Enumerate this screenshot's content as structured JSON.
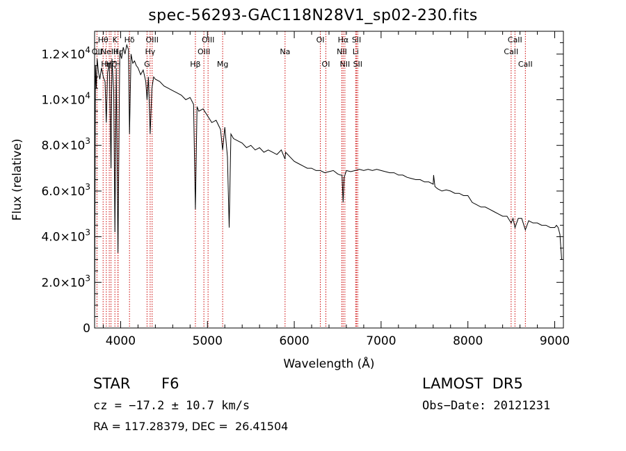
{
  "title": "spec-56293-GAC118N28V1_sp02-230.fits",
  "info": {
    "class": "STAR",
    "subclass": "F6",
    "survey": "LAMOST  DR5",
    "cz": "cz = −17.2 ± 10.7 km/s",
    "obs_date": "Obs−Date: 20121231",
    "coords": "RA = 117.28379, DEC =  26.41504"
  },
  "chart_data": {
    "type": "line",
    "title": "spec-56293-GAC118N28V1_sp02-230.fits",
    "xlabel": "Wavelength (Å)",
    "ylabel": "Flux (relative)",
    "xlim": [
      3700,
      9100
    ],
    "ylim": [
      0,
      13000
    ],
    "xticks": [
      {
        "value": 4000,
        "label": "4000"
      },
      {
        "value": 5000,
        "label": "5000"
      },
      {
        "value": 6000,
        "label": "6000"
      },
      {
        "value": 7000,
        "label": "7000"
      },
      {
        "value": 8000,
        "label": "8000"
      },
      {
        "value": 9000,
        "label": "9000"
      }
    ],
    "yticks": [
      {
        "value": 0,
        "mant": "0",
        "exp": ""
      },
      {
        "value": 2000,
        "mant": "2.0×10",
        "exp": "3"
      },
      {
        "value": 4000,
        "mant": "4.0×10",
        "exp": "3"
      },
      {
        "value": 6000,
        "mant": "6.0×10",
        "exp": "3"
      },
      {
        "value": 8000,
        "mant": "8.0×10",
        "exp": "3"
      },
      {
        "value": 10000,
        "mant": "1.0×10",
        "exp": "4"
      },
      {
        "value": 12000,
        "mant": "1.2×10",
        "exp": "4"
      }
    ],
    "grid": false,
    "line_color": "#000000",
    "marker_color": "#cc0000",
    "spectral_lines": [
      {
        "wave": 3727,
        "label": "OII",
        "row": 2
      },
      {
        "wave": 3798,
        "label": "Hθ",
        "row": 1
      },
      {
        "wave": 3835,
        "label": "Hη",
        "row": 3
      },
      {
        "wave": 3869,
        "label": "NeIII",
        "row": 2
      },
      {
        "wave": 3889,
        "label": "Hζ",
        "row": 3
      },
      {
        "wave": 3934,
        "label": "K",
        "row": 1
      },
      {
        "wave": 3970,
        "label": "Hε",
        "row": 2
      },
      {
        "wave": 3969,
        "label": "H",
        "row": 3
      },
      {
        "wave": 4102,
        "label": "Hδ",
        "row": 1
      },
      {
        "wave": 4304,
        "label": "G",
        "row": 3
      },
      {
        "wave": 4340,
        "label": "Hγ",
        "row": 2
      },
      {
        "wave": 4363,
        "label": "OIII",
        "row": 1
      },
      {
        "wave": 4861,
        "label": "Hβ",
        "row": 3
      },
      {
        "wave": 4959,
        "label": "OIII",
        "row": 2
      },
      {
        "wave": 5007,
        "label": "OIII",
        "row": 1
      },
      {
        "wave": 5175,
        "label": "Mg",
        "row": 3
      },
      {
        "wave": 5894,
        "label": "Na",
        "row": 2
      },
      {
        "wave": 6300,
        "label": "OI",
        "row": 1
      },
      {
        "wave": 6364,
        "label": "OI",
        "row": 3
      },
      {
        "wave": 6548,
        "label": "NII",
        "row": 2
      },
      {
        "wave": 6563,
        "label": "Hα",
        "row": 1
      },
      {
        "wave": 6583,
        "label": "NII",
        "row": 3
      },
      {
        "wave": 6707,
        "label": "Li",
        "row": 2
      },
      {
        "wave": 6717,
        "label": "SII",
        "row": 1
      },
      {
        "wave": 6731,
        "label": "SII",
        "row": 3
      },
      {
        "wave": 8498,
        "label": "CaII",
        "row": 2
      },
      {
        "wave": 8542,
        "label": "CaII",
        "row": 1
      },
      {
        "wave": 8662,
        "label": "CaII",
        "row": 3
      }
    ],
    "series": [
      {
        "values_x": [
          3700,
          3710,
          3720,
          3730,
          3745,
          3760,
          3780,
          3800,
          3820,
          3835,
          3850,
          3870,
          3889,
          3900,
          3920,
          3934,
          3950,
          3969,
          3990,
          4010,
          4030,
          4050,
          4070,
          4090,
          4102,
          4120,
          4140,
          4160,
          4180,
          4200,
          4230,
          4260,
          4290,
          4304,
          4320,
          4340,
          4360,
          4380,
          4400,
          4450,
          4500,
          4550,
          4600,
          4650,
          4700,
          4750,
          4800,
          4840,
          4861,
          4880,
          4900,
          4950,
          5000,
          5050,
          5100,
          5150,
          5175,
          5200,
          5230,
          5250,
          5270,
          5300,
          5350,
          5400,
          5450,
          5500,
          5550,
          5600,
          5650,
          5700,
          5750,
          5800,
          5850,
          5894,
          5900,
          5950,
          6000,
          6050,
          6100,
          6150,
          6200,
          6250,
          6300,
          6350,
          6400,
          6450,
          6500,
          6530,
          6550,
          6563,
          6575,
          6600,
          6650,
          6700,
          6750,
          6800,
          6850,
          6900,
          6950,
          7000,
          7050,
          7100,
          7150,
          7200,
          7250,
          7300,
          7350,
          7400,
          7450,
          7500,
          7550,
          7600,
          7605,
          7620,
          7650,
          7700,
          7750,
          7800,
          7850,
          7900,
          7950,
          8000,
          8050,
          8100,
          8150,
          8200,
          8250,
          8300,
          8350,
          8400,
          8450,
          8498,
          8520,
          8542,
          8580,
          8620,
          8662,
          8700,
          8750,
          8800,
          8850,
          8900,
          8950,
          9000,
          9020,
          9040,
          9060,
          9080,
          9100
        ],
        "values_y": [
          0,
          11500,
          10500,
          11800,
          11200,
          10900,
          11400,
          11000,
          10800,
          9000,
          11200,
          11600,
          7000,
          11800,
          10400,
          4200,
          11400,
          3300,
          12100,
          11800,
          12300,
          12000,
          12400,
          12200,
          8500,
          12000,
          11600,
          11700,
          11500,
          11400,
          11100,
          11300,
          10800,
          10000,
          11000,
          8500,
          10500,
          11000,
          10900,
          10800,
          10600,
          10500,
          10400,
          10300,
          10200,
          10000,
          10100,
          9800,
          5200,
          9700,
          9500,
          9600,
          9300,
          9000,
          9100,
          8700,
          7800,
          8800,
          7500,
          4400,
          8500,
          8300,
          8200,
          8100,
          7900,
          8000,
          7800,
          7900,
          7700,
          7800,
          7700,
          7600,
          7800,
          7400,
          7700,
          7500,
          7300,
          7200,
          7100,
          7000,
          7000,
          6900,
          6900,
          6800,
          6850,
          6900,
          6750,
          6700,
          6700,
          5500,
          6600,
          6900,
          6850,
          6900,
          6950,
          6900,
          6950,
          6900,
          6950,
          6900,
          6850,
          6800,
          6800,
          6700,
          6700,
          6600,
          6550,
          6500,
          6500,
          6400,
          6400,
          6300,
          6700,
          6200,
          6100,
          6000,
          6050,
          6000,
          5900,
          5900,
          5800,
          5800,
          5500,
          5400,
          5300,
          5300,
          5200,
          5100,
          5000,
          4900,
          4900,
          4600,
          4800,
          4400,
          4800,
          4800,
          4300,
          4700,
          4600,
          4600,
          4500,
          4500,
          4400,
          4400,
          4500,
          4400,
          4100,
          3000,
          3000
        ]
      }
    ]
  }
}
